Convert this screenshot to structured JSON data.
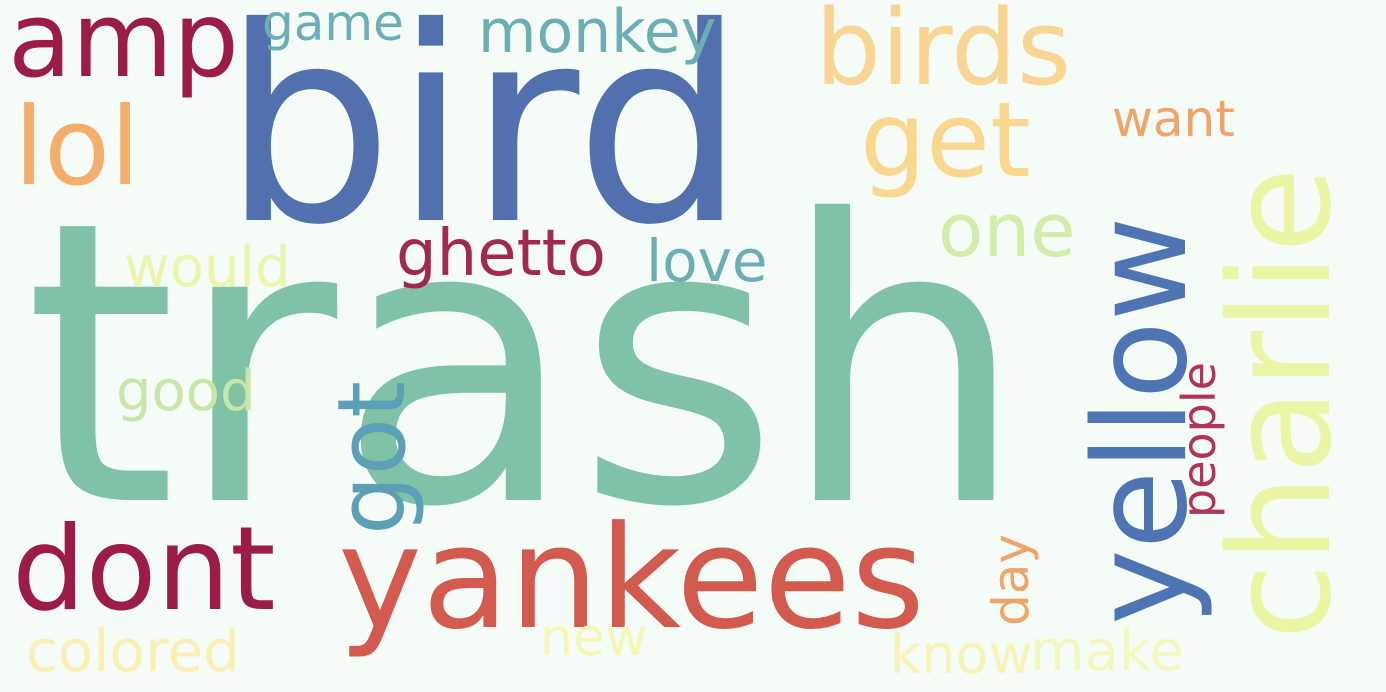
{
  "words": [
    {
      "id": "trash",
      "text": "trash",
      "color": "#7fc2a5"
    },
    {
      "id": "bird",
      "text": "bird",
      "color": "#5270ad"
    },
    {
      "id": "yankees",
      "text": "yankees",
      "color": "#d25a4f"
    },
    {
      "id": "yellow",
      "text": "yellow",
      "color": "#4e74b3"
    },
    {
      "id": "charlie",
      "text": "charlie",
      "color": "#eaf5a6"
    },
    {
      "id": "birds",
      "text": "birds",
      "color": "#f8d592"
    },
    {
      "id": "dont",
      "text": "dont",
      "color": "#9b1c47"
    },
    {
      "id": "amp",
      "text": "amp",
      "color": "#9b1c47"
    },
    {
      "id": "lol",
      "text": "lol",
      "color": "#f4ae6c"
    },
    {
      "id": "get",
      "text": "get",
      "color": "#fad78f"
    },
    {
      "id": "got",
      "text": "got",
      "color": "#5e9fb8"
    },
    {
      "id": "one",
      "text": "one",
      "color": "#d3ecaa"
    },
    {
      "id": "ghetto",
      "text": "ghetto",
      "color": "#a3294c"
    },
    {
      "id": "monkey",
      "text": "monkey",
      "color": "#6daeb4"
    },
    {
      "id": "game",
      "text": "game",
      "color": "#6daeb4"
    },
    {
      "id": "love",
      "text": "love",
      "color": "#6daeb4"
    },
    {
      "id": "would",
      "text": "would",
      "color": "#ecf5ad"
    },
    {
      "id": "good",
      "text": "good",
      "color": "#c9e6a8"
    },
    {
      "id": "colored",
      "text": "colored",
      "color": "#fbefb5"
    },
    {
      "id": "new",
      "text": "new",
      "color": "#f6f7b5"
    },
    {
      "id": "know",
      "text": "know",
      "color": "#f7f3b9"
    },
    {
      "id": "make",
      "text": "make",
      "color": "#f3f8bd"
    },
    {
      "id": "want",
      "text": "want",
      "color": "#f0a46a"
    },
    {
      "id": "people",
      "text": "people",
      "color": "#b03458"
    },
    {
      "id": "day",
      "text": "day",
      "color": "#f0a46a"
    }
  ]
}
